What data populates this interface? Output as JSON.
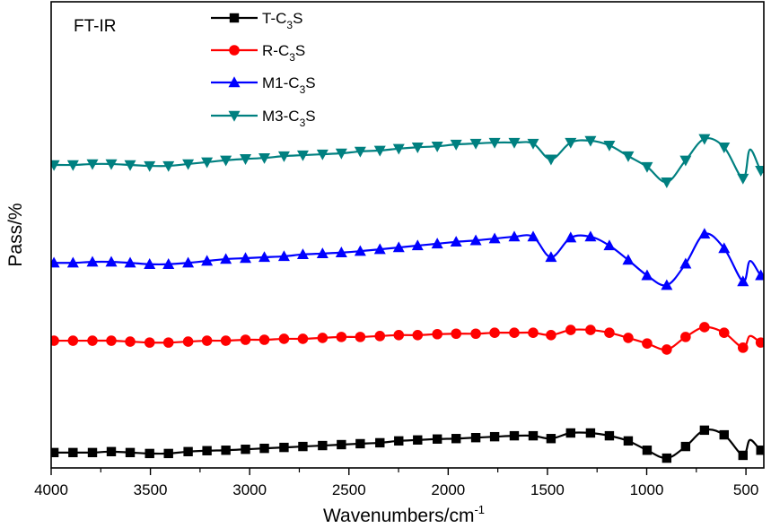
{
  "chart_data": {
    "type": "line",
    "title": "",
    "annotation": "FT-IR",
    "xlabel": "Wavenumbers/cm",
    "xlabel_superscript": "-1",
    "ylabel": "Pass/%",
    "xlim": [
      4000,
      410
    ],
    "ylim": [
      0,
      100
    ],
    "x_reversed": true,
    "x_ticks": [
      4000,
      3500,
      3000,
      2500,
      2000,
      1500,
      1000,
      500
    ],
    "x_tick_labels": [
      "4000",
      "3500",
      "3000",
      "2500",
      "2000",
      "1500",
      "1000",
      "500"
    ],
    "x_minor_ticks": [
      3750,
      3250,
      2750,
      2250,
      1750,
      1250,
      750
    ],
    "y_ticks": [],
    "grid": false,
    "legend": {
      "position": "top-center",
      "entries": [
        {
          "name_main": "T-C",
          "name_sub": "3",
          "name_end": "S"
        },
        {
          "name_main": "R-C",
          "name_sub": "3",
          "name_end": "S"
        },
        {
          "name_main": "M1-C",
          "name_sub": "3",
          "name_end": "S"
        },
        {
          "name_main": "M3-C",
          "name_sub": "3",
          "name_end": "S"
        }
      ]
    },
    "x": [
      3986,
      3890,
      3792,
      3697,
      3602,
      3504,
      3409,
      3310,
      3215,
      3120,
      3021,
      2926,
      2827,
      2732,
      2633,
      2538,
      2443,
      2344,
      2249,
      2154,
      2055,
      1960,
      1861,
      1766,
      1667,
      1572,
      1482,
      1383,
      1283,
      1188,
      1093,
      998,
      899,
      804,
      709,
      610,
      515,
      425
    ],
    "series": [
      {
        "name": "T-C3S",
        "color": "#000000",
        "marker": "square",
        "values": [
          3.3,
          3.3,
          3.3,
          3.5,
          3.3,
          3.1,
          3.1,
          3.5,
          3.7,
          3.8,
          4.0,
          4.2,
          4.4,
          4.6,
          4.8,
          5.0,
          5.2,
          5.4,
          5.8,
          6.0,
          6.2,
          6.3,
          6.5,
          6.7,
          6.9,
          6.9,
          6.3,
          7.5,
          7.5,
          6.9,
          5.8,
          3.8,
          2.1,
          4.6,
          8.1,
          7.1,
          2.7,
          3.8
        ],
        "peaks_between": [
          {
            "x": 480,
            "value": 6.0
          }
        ]
      },
      {
        "name": "R-C3S",
        "color": "#ff0000",
        "marker": "circle",
        "values": [
          27.3,
          27.3,
          27.3,
          27.3,
          27.1,
          26.9,
          26.9,
          27.1,
          27.3,
          27.3,
          27.5,
          27.5,
          27.7,
          27.7,
          27.9,
          28.1,
          28.1,
          28.3,
          28.5,
          28.5,
          28.7,
          28.8,
          28.8,
          29.0,
          29.0,
          29.0,
          28.5,
          29.6,
          29.6,
          29.0,
          27.9,
          26.7,
          25.4,
          28.1,
          30.2,
          29.0,
          25.8,
          26.9
        ],
        "peaks_between": [
          {
            "x": 480,
            "value": 28.3
          }
        ]
      },
      {
        "name": "M1-C3S",
        "color": "#0000ff",
        "marker": "triangle-up",
        "values": [
          44.0,
          44.0,
          44.2,
          44.2,
          44.0,
          43.7,
          43.7,
          44.0,
          44.4,
          44.8,
          45.0,
          45.2,
          45.4,
          45.8,
          46.0,
          46.2,
          46.5,
          46.9,
          47.3,
          47.7,
          48.1,
          48.5,
          48.8,
          49.2,
          49.6,
          49.6,
          45.2,
          49.4,
          49.6,
          47.7,
          44.6,
          41.3,
          39.2,
          43.8,
          50.2,
          47.1,
          40.0,
          41.3
        ],
        "peaks_between": [
          {
            "x": 480,
            "value": 44.4
          }
        ]
      },
      {
        "name": "M3-C3S",
        "color": "#008080",
        "marker": "triangle-down",
        "values": [
          65.0,
          65.0,
          65.2,
          65.2,
          65.0,
          64.8,
          64.8,
          65.2,
          65.6,
          66.0,
          66.3,
          66.5,
          66.9,
          67.1,
          67.3,
          67.5,
          67.9,
          68.1,
          68.5,
          68.8,
          69.0,
          69.4,
          69.6,
          69.8,
          69.8,
          69.6,
          66.2,
          69.8,
          70.2,
          69.2,
          66.9,
          64.6,
          61.3,
          66.0,
          70.6,
          68.8,
          62.1,
          63.8
        ],
        "peaks_between": [
          {
            "x": 480,
            "value": 68.3
          }
        ]
      }
    ]
  }
}
